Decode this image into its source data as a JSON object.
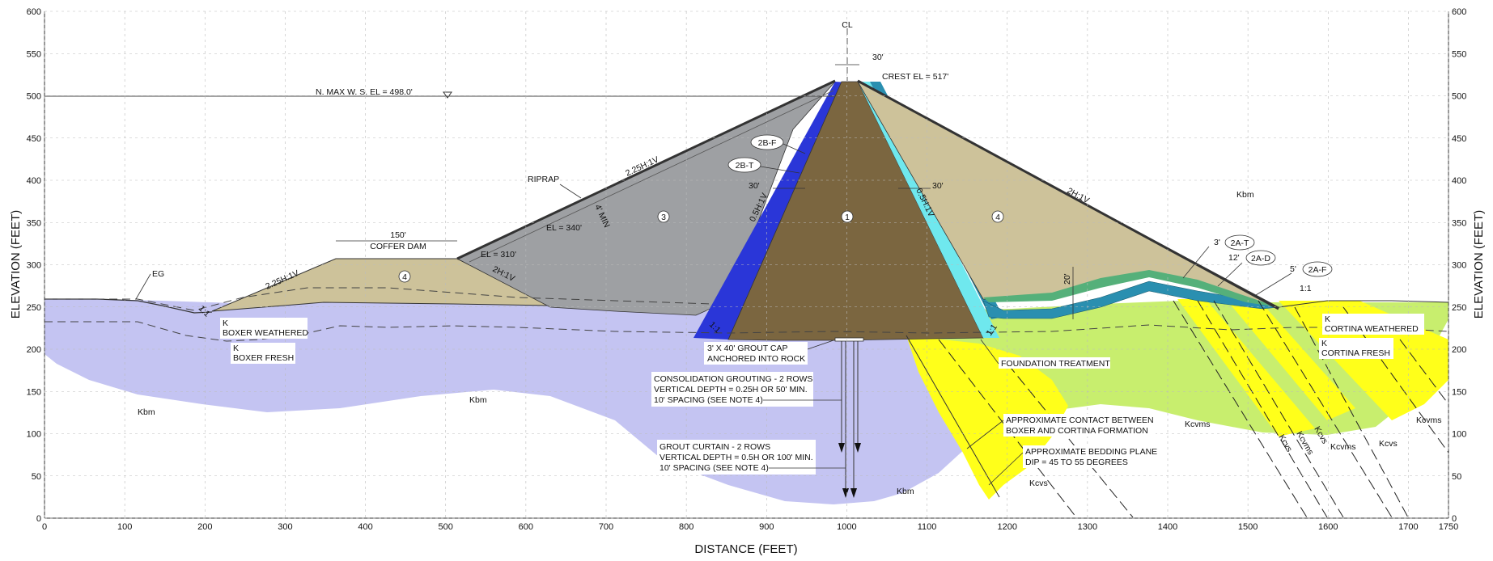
{
  "axes": {
    "x_label": "DISTANCE (FEET)",
    "y_label_left": "ELEVATION (FEET)",
    "y_label_right": "ELEVATION (FEET)",
    "x_ticks": [
      "0",
      "100",
      "200",
      "300",
      "400",
      "500",
      "600",
      "700",
      "800",
      "900",
      "1000",
      "1100",
      "1200",
      "1300",
      "1400",
      "1500",
      "1600",
      "1700",
      "1750"
    ],
    "y_ticks": [
      "0",
      "50",
      "100",
      "150",
      "200",
      "250",
      "300",
      "350",
      "400",
      "450",
      "500",
      "550",
      "600"
    ]
  },
  "annotations": {
    "centerline": "CL",
    "crest_width": "30'",
    "crest_el": "CREST EL = 517'",
    "max_ws": "N. MAX W. S. EL = 498.0'",
    "riprap": "RIPRAP",
    "slope_us": "2.25H:1V",
    "slope_ds": "2H:1V",
    "riprap_thk": "4' MIN",
    "el340": "EL = 340'",
    "el310": "EL = 310'",
    "coffer_width": "150'",
    "coffer_dam": "COFFER DAM",
    "coffer_slope_us": "2.25H:1V",
    "coffer_slope_ds": "2H:1V",
    "eg": "EG",
    "ratio_1_1_left": "1:1",
    "boxer_weathered_k": "K",
    "boxer_weathered": "BOXER WEATHERED",
    "boxer_fresh_k": "K",
    "boxer_fresh": "BOXER FRESH",
    "zone_2bf": "2B-F",
    "zone_2bt": "2B-T",
    "dim_30_left": "30'",
    "dim_30_right": "30'",
    "slope_05_left": "0.5H:1V",
    "slope_05_right": "0.5H:1V",
    "zone1": "1",
    "zone3": "3",
    "zone4_main": "4",
    "zone4_coffer": "4",
    "ratio_1_1_core_left": "1:1",
    "ratio_1_1_core_right": "1:1",
    "grout_cap_1": "3' X 40' GROUT CAP",
    "grout_cap_2": "ANCHORED INTO ROCK",
    "consol_1": "CONSOLIDATION GROUTING - 2 ROWS",
    "consol_2": "VERTICAL DEPTH = 0.25H OR 50' MIN.",
    "consol_3": "10' SPACING (SEE NOTE 4)",
    "curtain_1": "GROUT CURTAIN - 2 ROWS",
    "curtain_2": "VERTICAL DEPTH = 0.5H OR 100' MIN.",
    "curtain_3": "10' SPACING (SEE NOTE 4)",
    "foundation_treatment": "FOUNDATION TREATMENT",
    "contact_1": "APPROXIMATE CONTACT BETWEEN",
    "contact_2": "BOXER AND CORTINA FORMATION",
    "bedding_1": "APPROXIMATE BEDDING PLANE",
    "bedding_2": "DIP = 45 TO 55 DEGREES",
    "dim_20": "20'",
    "dim_3": "3'",
    "dim_12": "12'",
    "dim_5": "5'",
    "zone_2at": "2A-T",
    "zone_2ad": "2A-D",
    "zone_2af": "2A-F",
    "ratio_1_1_right": "1:1",
    "cortina_weathered_k": "K",
    "cortina_weathered": "CORTINA WEATHERED",
    "cortina_fresh_k": "K",
    "cortina_fresh": "CORTINA FRESH",
    "kbm_1": "Kbm",
    "kbm_2": "Kbm",
    "kbm_3": "Kbm",
    "kbm_4": "Kbm",
    "kcvs_1": "Kcvs",
    "kcvms_1": "Kcvms",
    "kcvs_2": "Kcvs",
    "kcvms_2": "Kcvms",
    "kcvs_3": "Kcvs",
    "kcvms_3": "Kcvms",
    "kcvs_4": "Kcvs",
    "kcvms_4": "Kcvms"
  },
  "colors": {
    "boxer": "#c4c4f2",
    "cortina_fresh": "#c8ee6e",
    "contact_zone": "#ffff1a",
    "core": "#7b6640",
    "shell_us": "#9ea0a3",
    "shell_ds": "#cdc29a",
    "filter_dark_blue": "#2a36d8",
    "filter_light_blue": "#5a64ee",
    "cyan": "#6fe8ee",
    "teal": "#2a8fb0",
    "green_drain": "#55b07a",
    "crest_rail": "#333333"
  }
}
